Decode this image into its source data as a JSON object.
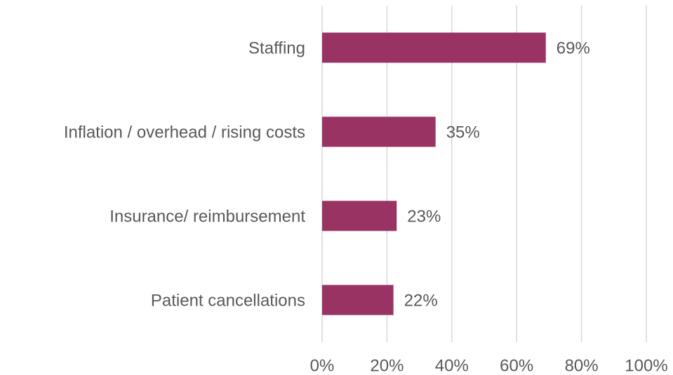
{
  "chart_data": {
    "type": "bar",
    "orientation": "horizontal",
    "categories": [
      "Staffing",
      "Inflation / overhead / rising costs",
      "Insurance/ reimbursement",
      "Patient cancellations"
    ],
    "values": [
      69,
      35,
      23,
      22
    ],
    "value_labels": [
      "69%",
      "35%",
      "23%",
      "22%"
    ],
    "color": "#993363",
    "xlim": [
      0,
      100
    ],
    "xticks": [
      {
        "value": 0,
        "label": "0%"
      },
      {
        "value": 20,
        "label": "20%"
      },
      {
        "value": 40,
        "label": "40%"
      },
      {
        "value": 60,
        "label": "60%"
      },
      {
        "value": 80,
        "label": "80%"
      },
      {
        "value": 100,
        "label": "100%"
      }
    ],
    "grid": true
  }
}
